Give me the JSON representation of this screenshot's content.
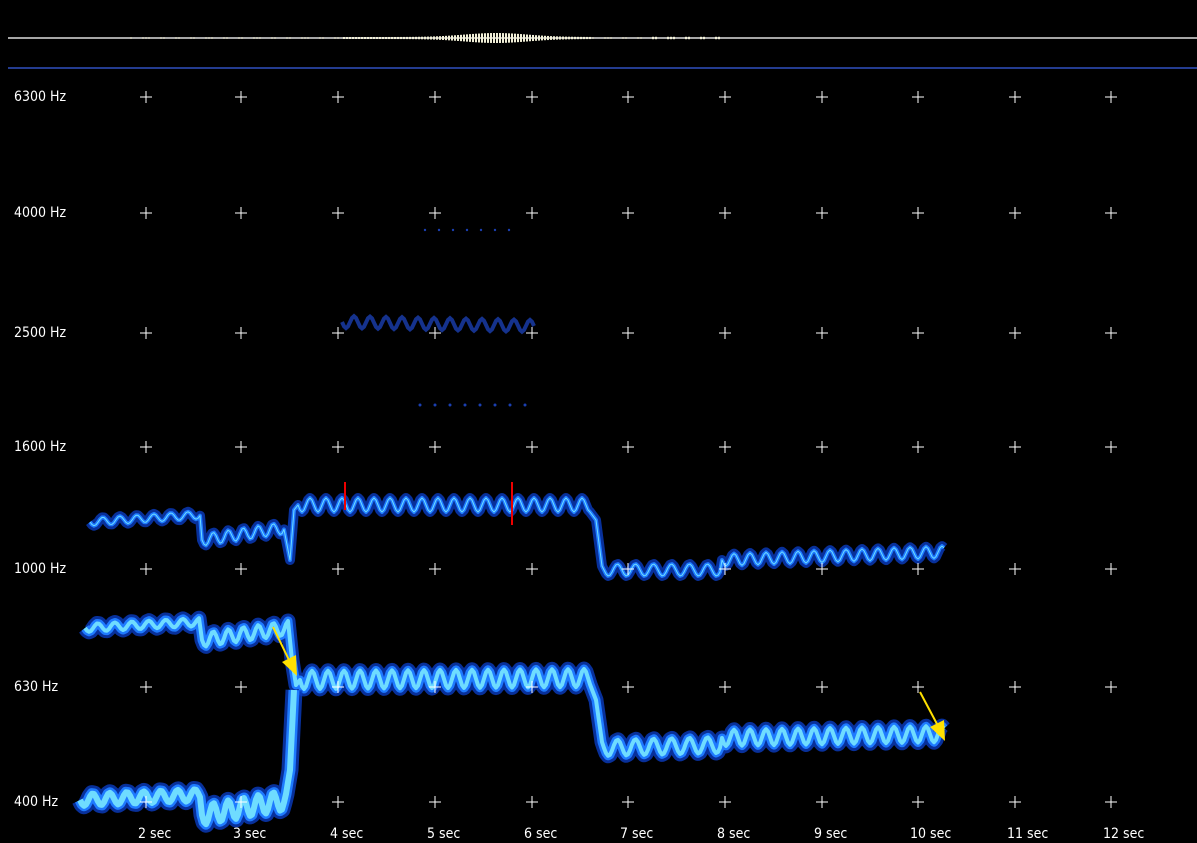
{
  "y_axis": {
    "labels": [
      "6300 Hz",
      "4000 Hz",
      "2500 Hz",
      "1600 Hz",
      "1000 Hz",
      "630 Hz",
      "400 Hz"
    ]
  },
  "x_axis": {
    "labels": [
      "2 sec",
      "3 sec",
      "4 sec",
      "5 sec",
      "6 sec",
      "7 sec",
      "8 sec",
      "9 sec",
      "10 sec",
      "11 sec",
      "12 sec"
    ]
  }
}
